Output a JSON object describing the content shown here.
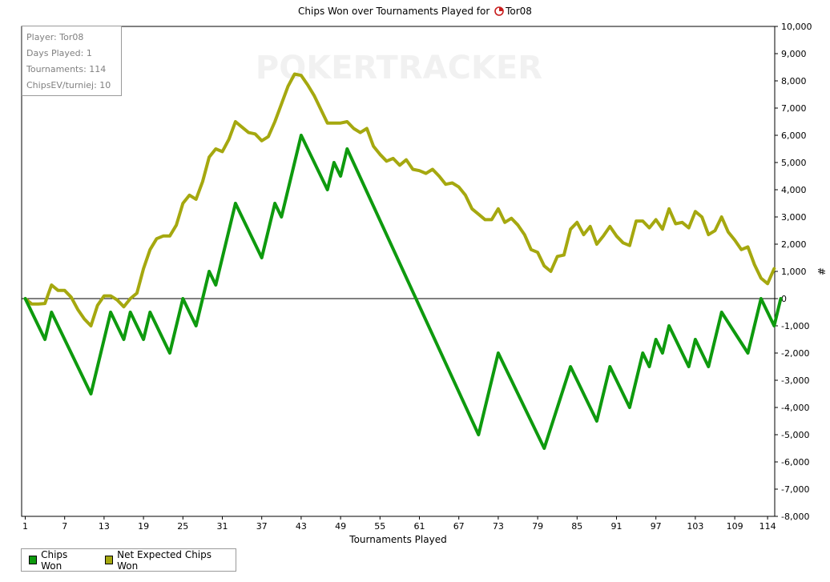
{
  "header": {
    "title_prefix": "Chips Won over Tournaments Played for",
    "player": "Tor08"
  },
  "watermark": "POKERTRACKER",
  "info": {
    "player": "Player: Tor08",
    "days": "Days Played: 1",
    "tournaments": "Tournaments: 114",
    "chipsev": "ChipsEV/turniej: 10"
  },
  "chart_data": {
    "type": "line",
    "xlabel": "Tournaments Played",
    "ylabel": "#",
    "xlim": [
      0,
      115
    ],
    "ylim": [
      -8000,
      10000
    ],
    "x_ticks": [
      1,
      7,
      13,
      19,
      25,
      31,
      37,
      43,
      49,
      55,
      61,
      67,
      73,
      79,
      85,
      91,
      97,
      103,
      109,
      114
    ],
    "y_ticks": [
      10000,
      9000,
      8000,
      7000,
      6000,
      5000,
      4000,
      3000,
      2000,
      1000,
      0,
      -1000,
      -2000,
      -3000,
      -4000,
      -5000,
      -6000,
      -7000,
      -8000
    ],
    "y_tick_labels": [
      "10,000",
      "9,000",
      "8,000",
      "7,000",
      "6,000",
      "5,000",
      "4,000",
      "3,000",
      "2,000",
      "1,000",
      "0",
      "-1,000",
      "-2,000",
      "-3,000",
      "-4,000",
      "-5,000",
      "-6,000",
      "-7,000",
      "-8,000"
    ],
    "grid": false,
    "legend_position": "bottom-left",
    "series": [
      {
        "name": "Chips Won",
        "color": "#0e9a0e",
        "points": [
          [
            1,
            0
          ],
          [
            4,
            -1500
          ],
          [
            5,
            -500
          ],
          [
            11,
            -3500
          ],
          [
            14,
            -500
          ],
          [
            16,
            -1500
          ],
          [
            17,
            -500
          ],
          [
            19,
            -1500
          ],
          [
            20,
            -500
          ],
          [
            23,
            -2000
          ],
          [
            25,
            0
          ],
          [
            27,
            -1000
          ],
          [
            29,
            1000
          ],
          [
            30,
            500
          ],
          [
            33,
            3500
          ],
          [
            37,
            1500
          ],
          [
            39,
            3500
          ],
          [
            40,
            3000
          ],
          [
            43,
            6000
          ],
          [
            47,
            4000
          ],
          [
            48,
            5000
          ],
          [
            49,
            4500
          ],
          [
            50,
            5500
          ],
          [
            70,
            -5000
          ],
          [
            73,
            -2000
          ],
          [
            80,
            -5500
          ],
          [
            84,
            -2500
          ],
          [
            88,
            -4500
          ],
          [
            90,
            -2500
          ],
          [
            93,
            -4000
          ],
          [
            95,
            -2000
          ],
          [
            96,
            -2500
          ],
          [
            97,
            -1500
          ],
          [
            98,
            -2000
          ],
          [
            99,
            -1000
          ],
          [
            102,
            -2500
          ],
          [
            103,
            -1500
          ],
          [
            105,
            -2500
          ],
          [
            107,
            -500
          ],
          [
            111,
            -2000
          ],
          [
            113,
            0
          ],
          [
            115,
            -1000
          ],
          [
            116,
            0
          ]
        ]
      },
      {
        "name": "Net Expected Chips Won",
        "color": "#a5a80f",
        "points": [
          [
            1,
            0
          ],
          [
            2,
            -200
          ],
          [
            3,
            -200
          ],
          [
            4,
            -180
          ],
          [
            5,
            500
          ],
          [
            6,
            300
          ],
          [
            7,
            300
          ],
          [
            8,
            50
          ],
          [
            9,
            -400
          ],
          [
            10,
            -750
          ],
          [
            11,
            -1000
          ],
          [
            12,
            -250
          ],
          [
            13,
            100
          ],
          [
            14,
            100
          ],
          [
            15,
            -50
          ],
          [
            16,
            -300
          ],
          [
            17,
            0
          ],
          [
            18,
            200
          ],
          [
            19,
            1100
          ],
          [
            20,
            1800
          ],
          [
            21,
            2200
          ],
          [
            22,
            2300
          ],
          [
            23,
            2300
          ],
          [
            24,
            2700
          ],
          [
            25,
            3500
          ],
          [
            26,
            3800
          ],
          [
            27,
            3650
          ],
          [
            28,
            4300
          ],
          [
            29,
            5200
          ],
          [
            30,
            5500
          ],
          [
            31,
            5400
          ],
          [
            32,
            5850
          ],
          [
            33,
            6500
          ],
          [
            34,
            6300
          ],
          [
            35,
            6100
          ],
          [
            36,
            6050
          ],
          [
            37,
            5800
          ],
          [
            38,
            5950
          ],
          [
            39,
            6500
          ],
          [
            40,
            7150
          ],
          [
            41,
            7800
          ],
          [
            42,
            8250
          ],
          [
            43,
            8200
          ],
          [
            44,
            7850
          ],
          [
            45,
            7450
          ],
          [
            46,
            6950
          ],
          [
            47,
            6450
          ],
          [
            48,
            6450
          ],
          [
            49,
            6450
          ],
          [
            50,
            6500
          ],
          [
            51,
            6250
          ],
          [
            52,
            6100
          ],
          [
            53,
            6250
          ],
          [
            54,
            5600
          ],
          [
            55,
            5300
          ],
          [
            56,
            5050
          ],
          [
            57,
            5150
          ],
          [
            58,
            4900
          ],
          [
            59,
            5100
          ],
          [
            60,
            4750
          ],
          [
            61,
            4700
          ],
          [
            62,
            4600
          ],
          [
            63,
            4750
          ],
          [
            64,
            4500
          ],
          [
            65,
            4200
          ],
          [
            66,
            4250
          ],
          [
            67,
            4100
          ],
          [
            68,
            3800
          ],
          [
            69,
            3300
          ],
          [
            70,
            3100
          ],
          [
            71,
            2900
          ],
          [
            72,
            2900
          ],
          [
            73,
            3300
          ],
          [
            74,
            2800
          ],
          [
            75,
            2950
          ],
          [
            76,
            2700
          ],
          [
            77,
            2350
          ],
          [
            78,
            1800
          ],
          [
            79,
            1700
          ],
          [
            80,
            1200
          ],
          [
            81,
            1000
          ],
          [
            82,
            1550
          ],
          [
            83,
            1600
          ],
          [
            84,
            2550
          ],
          [
            85,
            2800
          ],
          [
            86,
            2350
          ],
          [
            87,
            2650
          ],
          [
            88,
            2000
          ],
          [
            89,
            2300
          ],
          [
            90,
            2650
          ],
          [
            91,
            2300
          ],
          [
            92,
            2050
          ],
          [
            93,
            1950
          ],
          [
            94,
            2850
          ],
          [
            95,
            2850
          ],
          [
            96,
            2600
          ],
          [
            97,
            2900
          ],
          [
            98,
            2550
          ],
          [
            99,
            3300
          ],
          [
            100,
            2750
          ],
          [
            101,
            2800
          ],
          [
            102,
            2600
          ],
          [
            103,
            3200
          ],
          [
            104,
            3000
          ],
          [
            105,
            2350
          ],
          [
            106,
            2500
          ],
          [
            107,
            3000
          ],
          [
            108,
            2450
          ],
          [
            109,
            2150
          ],
          [
            110,
            1800
          ],
          [
            111,
            1900
          ],
          [
            112,
            1250
          ],
          [
            113,
            750
          ],
          [
            114,
            550
          ],
          [
            115,
            1100
          ]
        ]
      }
    ]
  }
}
